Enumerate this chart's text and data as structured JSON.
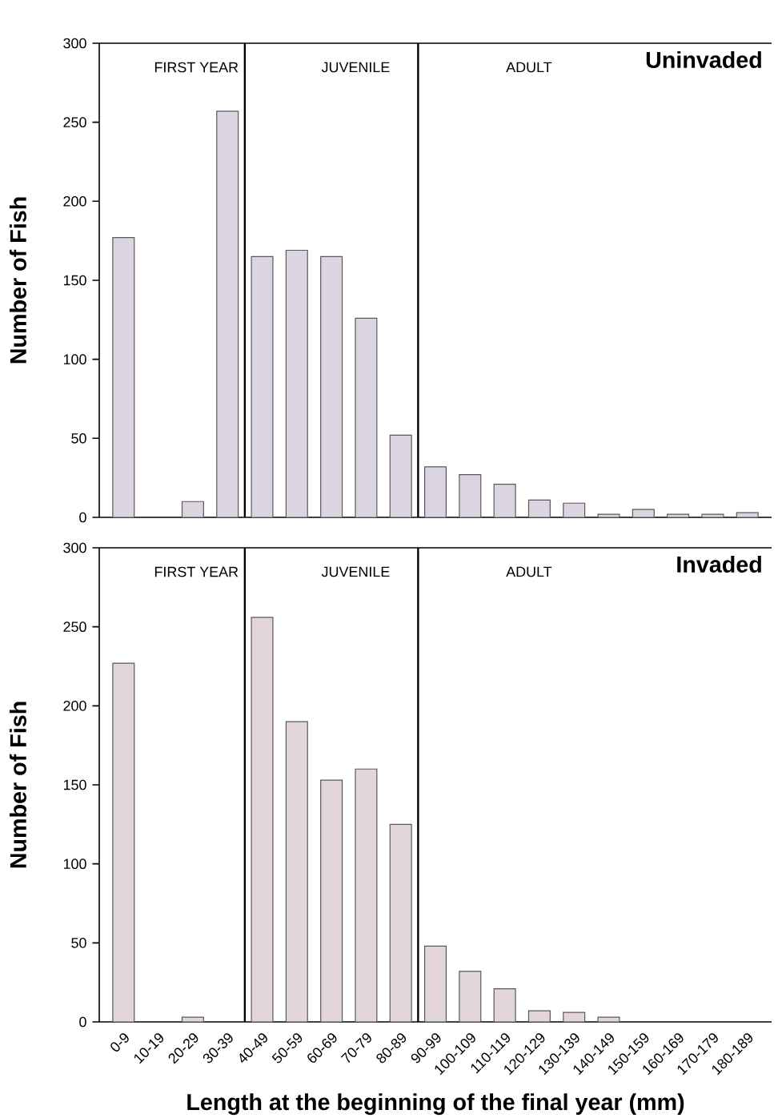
{
  "chart_data": [
    {
      "type": "bar",
      "title": "Uninvaded",
      "ylabel": "Number of Fish",
      "tick_labels": "y",
      "categories": [
        null,
        null,
        null,
        null,
        null,
        null,
        null,
        null,
        null,
        null,
        null,
        null,
        null,
        null,
        null,
        null,
        null,
        null,
        null
      ],
      "values": [
        177,
        0,
        10,
        257,
        165,
        169,
        165,
        126,
        52,
        32,
        27,
        21,
        11,
        9,
        2,
        5,
        2,
        2,
        3
      ],
      "color": "#dcd4e0",
      "ylim": [
        0,
        300
      ],
      "yticks": [
        0,
        50,
        100,
        150,
        200,
        250,
        300
      ],
      "annotations": [
        "FIRST YEAR",
        "JUVENILE",
        "ADULT"
      ]
    },
    {
      "type": "bar",
      "title": "Invaded",
      "ylabel": "Number of Fish",
      "xlabel": "Length at the beginning of the final year (mm)",
      "categories": [
        "0-9",
        "10-19",
        "20-29",
        "30-39",
        "40-49",
        "50-59",
        "60-69",
        "70-79",
        "80-89",
        "90-99",
        "100-109",
        "110-119",
        "120-129",
        "130-139",
        "140-149",
        "150-159",
        "160-169",
        "170-179",
        "180-189"
      ],
      "values": [
        227,
        0,
        3,
        0,
        256,
        190,
        153,
        160,
        125,
        48,
        32,
        21,
        7,
        6,
        3,
        0,
        0,
        0,
        0
      ],
      "color": "#e2d6dc",
      "ylim": [
        0,
        300
      ],
      "yticks": [
        0,
        50,
        100,
        150,
        200,
        250,
        300
      ],
      "annotations": [
        "FIRST YEAR",
        "JUVENILE",
        "ADULT"
      ]
    }
  ]
}
